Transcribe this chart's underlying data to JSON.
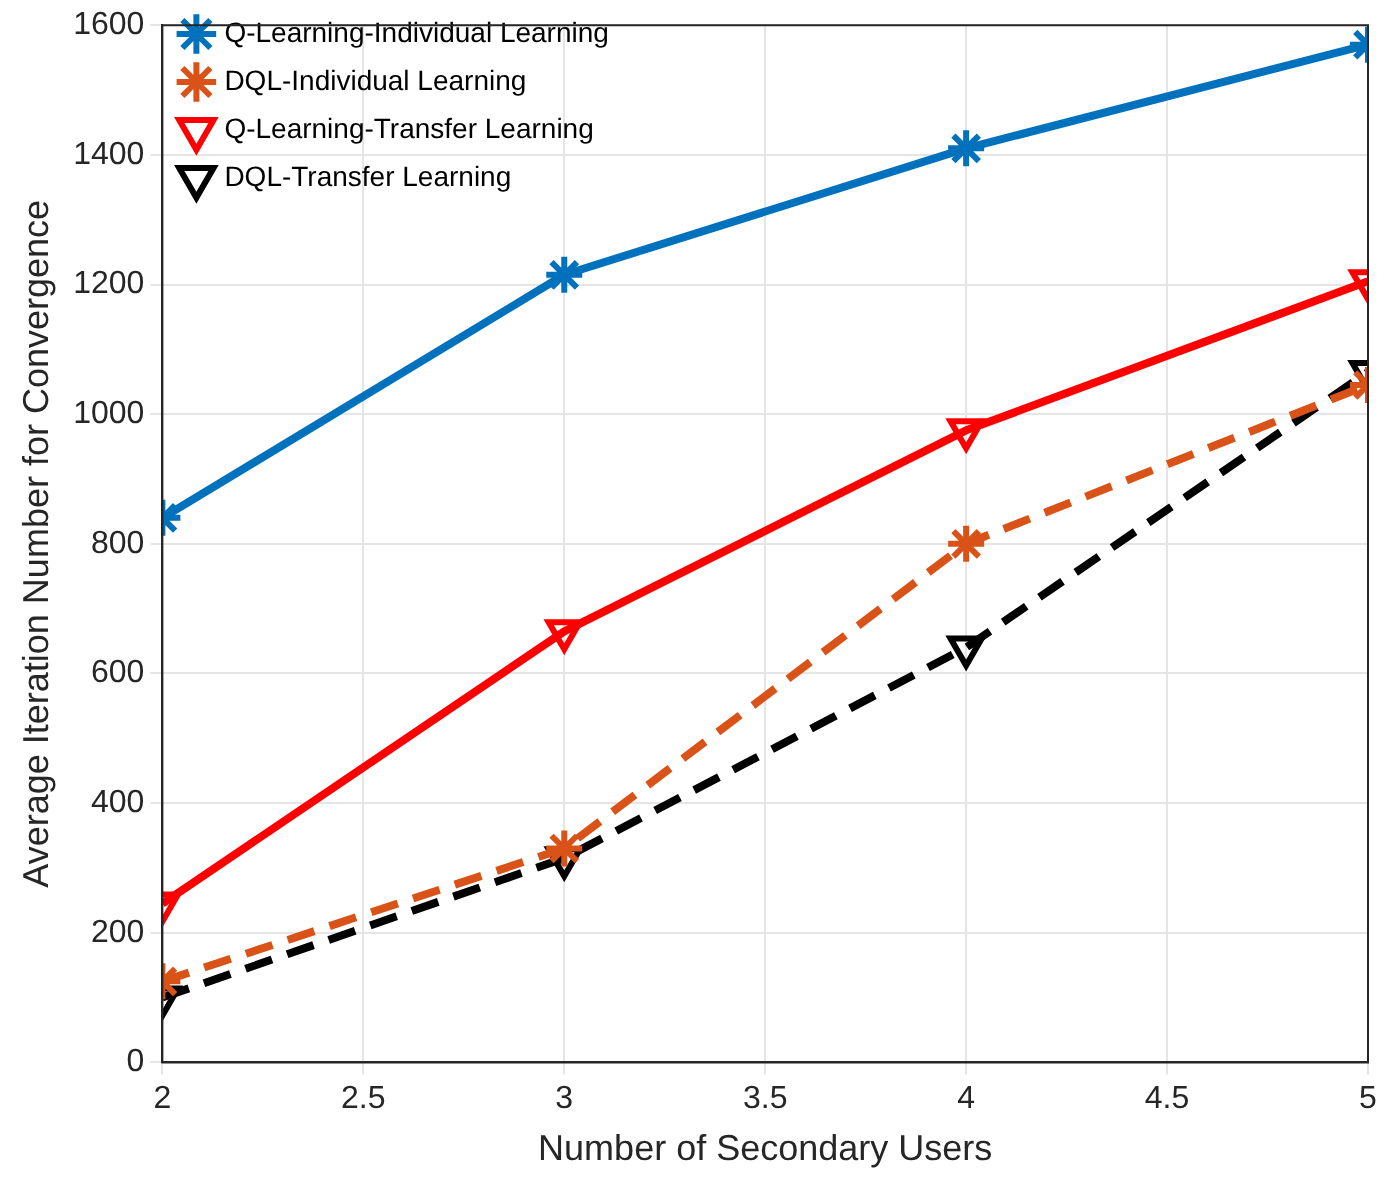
{
  "chart_data": {
    "type": "line",
    "xlabel": "Number of Secondary Users",
    "ylabel": "Average Iteration Number for Convergence",
    "x": [
      2,
      3,
      4,
      5
    ],
    "series": [
      {
        "name": "Q-Learning-Individual Learning",
        "color": "#0072bd",
        "values": [
          840,
          1215,
          1410,
          1570
        ],
        "marker": "cross",
        "line_style": "solid"
      },
      {
        "name": "DQL-Individual Learning",
        "color": "#d95319",
        "values": [
          125,
          330,
          800,
          1045
        ],
        "marker": "cross",
        "line_style": "dashed"
      },
      {
        "name": "Q-Learning-Transfer Learning",
        "color": "#ff0000",
        "values": [
          245,
          665,
          975,
          1205
        ],
        "marker": "triangle",
        "line_style": "solid"
      },
      {
        "name": "DQL-Transfer Learning",
        "color": "#000000",
        "values": [
          100,
          315,
          640,
          1065
        ],
        "marker": "triangle",
        "line_style": "dashed"
      }
    ],
    "xlim": [
      2,
      5
    ],
    "xticks": [
      2,
      2.5,
      3,
      3.5,
      4,
      4.5,
      5
    ],
    "ylim": [
      0,
      1600
    ],
    "yticks": [
      0,
      200,
      400,
      600,
      800,
      1000,
      1200,
      1400,
      1600
    ],
    "grid": true,
    "legend": "top left"
  }
}
